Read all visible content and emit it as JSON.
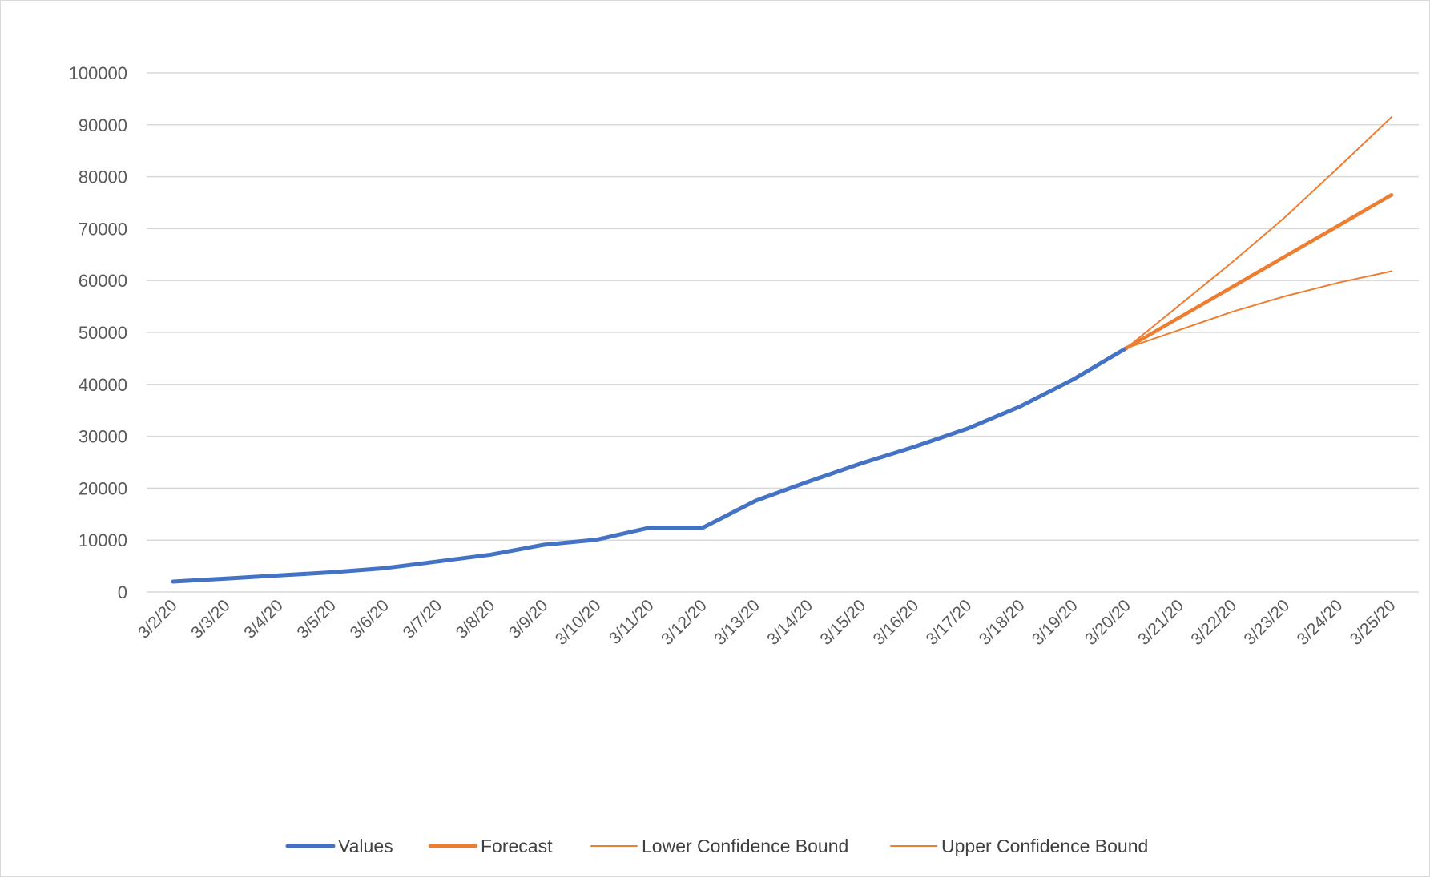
{
  "chart_data": {
    "type": "line",
    "title": "",
    "xlabel": "",
    "ylabel": "",
    "ylim": [
      0,
      100000
    ],
    "yticks": [
      0,
      10000,
      20000,
      30000,
      40000,
      50000,
      60000,
      70000,
      80000,
      90000,
      100000
    ],
    "categories": [
      "3/2/20",
      "3/3/20",
      "3/4/20",
      "3/5/20",
      "3/6/20",
      "3/7/20",
      "3/8/20",
      "3/9/20",
      "3/10/20",
      "3/11/20",
      "3/12/20",
      "3/13/20",
      "3/14/20",
      "3/15/20",
      "3/16/20",
      "3/17/20",
      "3/18/20",
      "3/19/20",
      "3/20/20",
      "3/21/20",
      "3/22/20",
      "3/23/20",
      "3/24/20",
      "3/25/20"
    ],
    "grid": true,
    "legend_position": "bottom",
    "series": [
      {
        "name": "Values",
        "color": "#4472C4",
        "values": [
          2000,
          2600,
          3200,
          3800,
          4600,
          5900,
          7200,
          9100,
          10100,
          12400,
          12400,
          17600,
          21300,
          24800,
          28000,
          31500,
          35800,
          41000,
          47000,
          null,
          null,
          null,
          null,
          null
        ]
      },
      {
        "name": "Forecast",
        "color": "#ED7D31",
        "values": [
          null,
          null,
          null,
          null,
          null,
          null,
          null,
          null,
          null,
          null,
          null,
          null,
          null,
          null,
          null,
          null,
          null,
          null,
          47000,
          52900,
          58800,
          64700,
          70600,
          76500
        ]
      },
      {
        "name": "Lower Confidence Bound",
        "color": "#ED7D31",
        "values": [
          null,
          null,
          null,
          null,
          null,
          null,
          null,
          null,
          null,
          null,
          null,
          null,
          null,
          null,
          null,
          null,
          null,
          null,
          47000,
          50500,
          54000,
          57000,
          59600,
          61800
        ]
      },
      {
        "name": "Upper Confidence Bound",
        "color": "#ED7D31",
        "values": [
          null,
          null,
          null,
          null,
          null,
          null,
          null,
          null,
          null,
          null,
          null,
          null,
          null,
          null,
          null,
          null,
          null,
          null,
          47000,
          55300,
          63600,
          72300,
          81800,
          91500
        ]
      }
    ]
  }
}
